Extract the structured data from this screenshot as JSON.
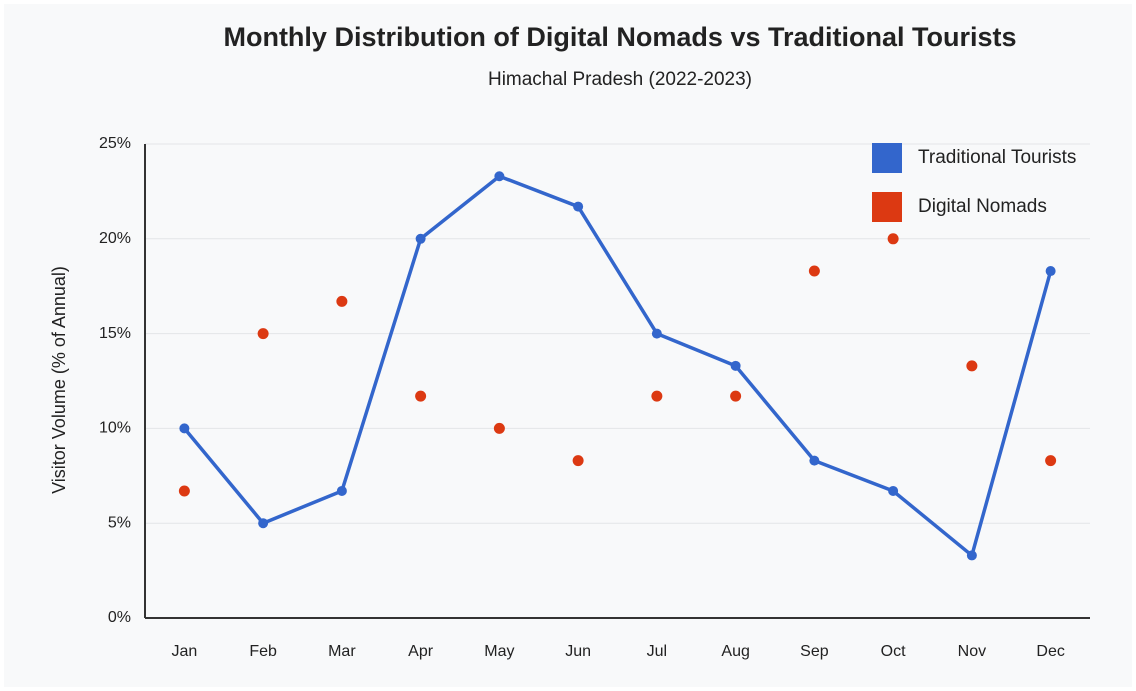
{
  "chart_data": {
    "type": "line",
    "title": "Monthly Distribution of Digital Nomads vs Traditional Tourists",
    "subtitle": "Himachal Pradesh (2022-2023)",
    "y_label": "Visitor Volume (% of Annual)",
    "categories": [
      "Jan",
      "Feb",
      "Mar",
      "Apr",
      "May",
      "Jun",
      "Jul",
      "Aug",
      "Sep",
      "Oct",
      "Nov",
      "Dec"
    ],
    "series": [
      {
        "name": "Traditional Tourists",
        "type": "line",
        "color": "#3366cc",
        "values": [
          10,
          5,
          6.7,
          20,
          23.3,
          21.7,
          15,
          13.3,
          8.3,
          6.7,
          3.3,
          18.3
        ]
      },
      {
        "name": "Digital Nomads",
        "type": "scatter",
        "color": "#dc3912",
        "values": [
          6.7,
          15,
          16.7,
          11.7,
          10,
          8.3,
          11.7,
          11.7,
          18.3,
          20,
          13.3,
          8.3
        ]
      }
    ],
    "ylim": [
      0,
      25
    ],
    "yticks": [
      {
        "value": 0,
        "label": "0%"
      },
      {
        "value": 5,
        "label": "5%"
      },
      {
        "value": 10,
        "label": "10%"
      },
      {
        "value": 15,
        "label": "15%"
      },
      {
        "value": 20,
        "label": "20%"
      },
      {
        "value": 25,
        "label": "25%"
      }
    ],
    "grid": true,
    "legend": "top-right"
  }
}
